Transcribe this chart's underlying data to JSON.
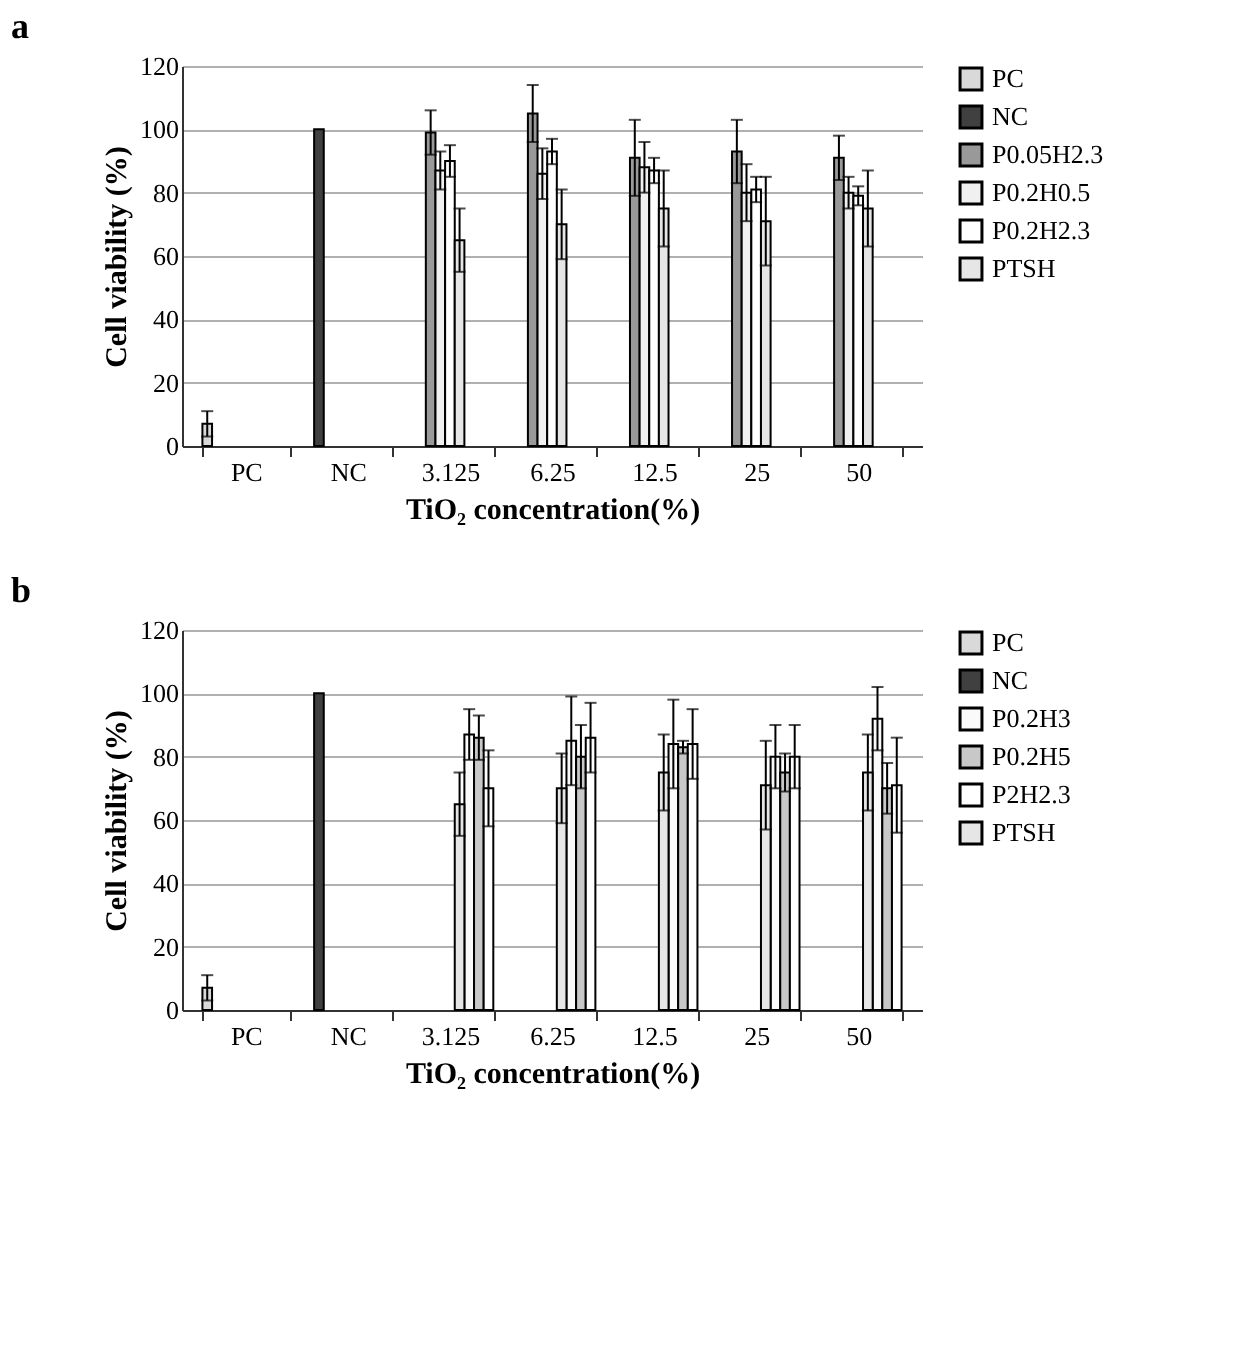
{
  "chart_data": [
    {
      "type": "bar",
      "title": "a",
      "xlabel": "TiO₂ concentration(%)",
      "ylabel": "Cell viability (%)",
      "categories": [
        "PC",
        "NC",
        "3.125",
        "6.25",
        "12.5",
        "25",
        "50"
      ],
      "ylim": [
        0,
        120
      ],
      "yticks": [
        0,
        20,
        40,
        60,
        80,
        100,
        120
      ],
      "grid": "y",
      "legend": "right",
      "series": [
        {
          "name": "PC",
          "color": "#d9d9d9",
          "values": [
            7,
            null,
            null,
            null,
            null,
            null,
            null
          ],
          "errors": [
            4,
            null,
            null,
            null,
            null,
            null,
            null
          ]
        },
        {
          "name": "NC",
          "color": "#404040",
          "values": [
            null,
            100,
            null,
            null,
            null,
            null,
            null
          ],
          "errors": [
            null,
            null,
            null,
            null,
            null,
            null,
            null
          ]
        },
        {
          "name": "P0.05H2.3",
          "color": "#999999",
          "values": [
            null,
            null,
            99,
            105,
            91,
            93,
            91
          ],
          "errors": [
            null,
            null,
            7,
            9,
            12,
            10,
            7
          ]
        },
        {
          "name": "P0.2H0.5",
          "color": "#f0f0f0",
          "values": [
            null,
            null,
            87,
            86,
            88,
            80,
            80
          ],
          "errors": [
            null,
            null,
            6,
            8,
            8,
            9,
            5
          ]
        },
        {
          "name": "P0.2H2.3",
          "color": "#ffffff",
          "values": [
            null,
            null,
            90,
            93,
            87,
            81,
            79
          ],
          "errors": [
            null,
            null,
            5,
            4,
            4,
            4,
            3
          ]
        },
        {
          "name": "PTSH",
          "color": "#e6e6e6",
          "values": [
            null,
            null,
            65,
            70,
            75,
            71,
            75
          ],
          "errors": [
            null,
            null,
            10,
            11,
            12,
            14,
            12
          ]
        }
      ]
    },
    {
      "type": "bar",
      "title": "b",
      "xlabel": "TiO₂ concentration(%)",
      "ylabel": "Cell viability (%)",
      "categories": [
        "PC",
        "NC",
        "3.125",
        "6.25",
        "12.5",
        "25",
        "50"
      ],
      "ylim": [
        0,
        120
      ],
      "yticks": [
        0,
        20,
        40,
        60,
        80,
        100,
        120
      ],
      "grid": "y",
      "legend": "right",
      "series": [
        {
          "name": "PC",
          "color": "#d9d9d9",
          "values": [
            7,
            null,
            null,
            null,
            null,
            null,
            null
          ],
          "errors": [
            4,
            null,
            null,
            null,
            null,
            null,
            null
          ]
        },
        {
          "name": "NC",
          "color": "#404040",
          "values": [
            null,
            100,
            null,
            null,
            null,
            null,
            null
          ],
          "errors": [
            null,
            null,
            null,
            null,
            null,
            null,
            null
          ]
        },
        {
          "name": "P0.2H3",
          "color": "#fafafa",
          "values": [
            null,
            null,
            87,
            85,
            84,
            80,
            92
          ],
          "errors": [
            null,
            null,
            8,
            14,
            14,
            10,
            10
          ]
        },
        {
          "name": "P0.2H5",
          "color": "#c8c8c8",
          "values": [
            null,
            null,
            86,
            80,
            83,
            75,
            70
          ],
          "errors": [
            null,
            null,
            7,
            10,
            2,
            6,
            8
          ]
        },
        {
          "name": "P2H2.3",
          "color": "#ffffff",
          "values": [
            null,
            null,
            70,
            86,
            84,
            80,
            71
          ],
          "errors": [
            null,
            null,
            12,
            11,
            11,
            10,
            15
          ]
        },
        {
          "name": "PTSH",
          "color": "#e6e6e6",
          "values": [
            null,
            null,
            65,
            70,
            75,
            71,
            75
          ],
          "errors": [
            null,
            null,
            10,
            11,
            12,
            14,
            12
          ]
        }
      ]
    }
  ]
}
